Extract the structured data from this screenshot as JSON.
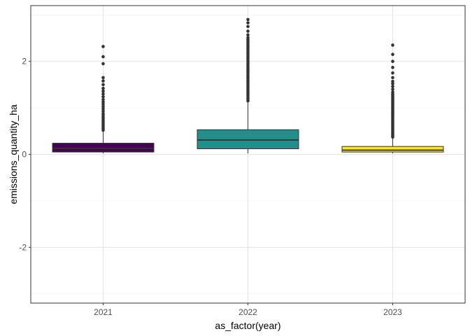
{
  "chart_data": {
    "type": "boxplot",
    "title": "",
    "xlabel": "as_factor(year)",
    "ylabel": "emissions_quantity_ha",
    "ylim": [
      -3.2,
      3.2
    ],
    "y_ticks": [
      -2,
      0,
      2
    ],
    "y_tick_labels": [
      "-2",
      "0",
      "2"
    ],
    "grid": true,
    "legend": "none",
    "categories": [
      "2021",
      "2022",
      "2023"
    ],
    "boxes": [
      {
        "category": "2021",
        "color": "#440154",
        "lower_whisker": 0.02,
        "q1": 0.05,
        "median": 0.13,
        "q3": 0.24,
        "upper_whisker": 0.5,
        "outliers": [
          0.52,
          0.56,
          0.6,
          0.64,
          0.68,
          0.72,
          0.76,
          0.8,
          0.84,
          0.88,
          0.93,
          0.98,
          1.03,
          1.08,
          1.13,
          1.18,
          1.24,
          1.3,
          1.36,
          1.42,
          1.5,
          1.58,
          1.65,
          1.95,
          2.1,
          2.32
        ]
      },
      {
        "category": "2022",
        "color": "#21908C",
        "lower_whisker": 0.02,
        "q1": 0.12,
        "median": 0.31,
        "q3": 0.53,
        "upper_whisker": 1.12,
        "outliers": [
          1.15,
          1.19,
          1.23,
          1.27,
          1.31,
          1.35,
          1.39,
          1.43,
          1.47,
          1.51,
          1.55,
          1.59,
          1.63,
          1.67,
          1.71,
          1.75,
          1.79,
          1.83,
          1.87,
          1.91,
          1.95,
          1.99,
          2.03,
          2.07,
          2.11,
          2.15,
          2.19,
          2.23,
          2.27,
          2.31,
          2.35,
          2.39,
          2.43,
          2.47,
          2.51,
          2.57,
          2.65,
          2.75,
          2.83,
          2.9
        ]
      },
      {
        "category": "2023",
        "color": "#FDE725",
        "lower_whisker": 0.02,
        "q1": 0.05,
        "median": 0.09,
        "q3": 0.17,
        "upper_whisker": 0.35,
        "outliers": [
          0.37,
          0.4,
          0.43,
          0.46,
          0.49,
          0.52,
          0.55,
          0.58,
          0.61,
          0.64,
          0.67,
          0.7,
          0.73,
          0.76,
          0.79,
          0.82,
          0.85,
          0.88,
          0.91,
          0.94,
          0.97,
          1.0,
          1.03,
          1.06,
          1.09,
          1.12,
          1.15,
          1.18,
          1.21,
          1.24,
          1.27,
          1.3,
          1.34,
          1.4,
          1.46,
          1.52,
          1.57,
          1.65,
          1.75,
          1.87,
          2.0,
          2.15,
          2.35
        ]
      }
    ]
  }
}
